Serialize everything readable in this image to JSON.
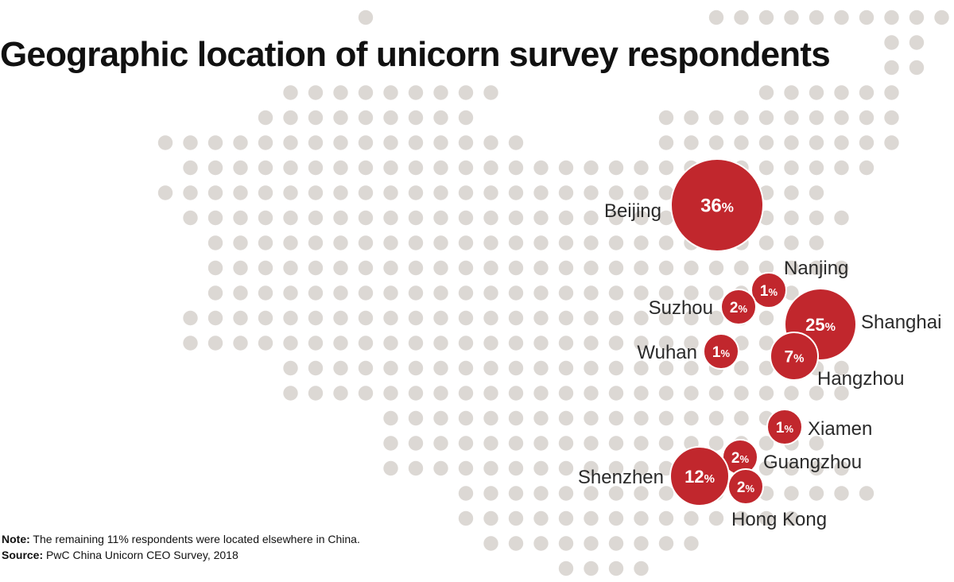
{
  "title": "Geographic location of unicorn survey respondents",
  "note_label": "Note:",
  "note_text": "The remaining 11% respondents were located elsewhere in China.",
  "source_label": "Source:",
  "source_text": "PwC China Unicorn CEO Survey, 2018",
  "colors": {
    "bubble": "#c1272d",
    "dot": "#dcd8d4",
    "text": "#2a2a2a"
  },
  "cities": [
    {
      "name": "Beijing",
      "value": "36%",
      "share": 36
    },
    {
      "name": "Nanjing",
      "value": "1%",
      "share": 1
    },
    {
      "name": "Suzhou",
      "value": "2%",
      "share": 2
    },
    {
      "name": "Shanghai",
      "value": "25%",
      "share": 25
    },
    {
      "name": "Wuhan",
      "value": "1%",
      "share": 1
    },
    {
      "name": "Hangzhou",
      "value": "7%",
      "share": 7
    },
    {
      "name": "Xiamen",
      "value": "1%",
      "share": 1
    },
    {
      "name": "Guangzhou",
      "value": "2%",
      "share": 2
    },
    {
      "name": "Shenzhen",
      "value": "12%",
      "share": 12
    },
    {
      "name": "Hong Kong",
      "value": "2%",
      "share": 2
    }
  ]
}
